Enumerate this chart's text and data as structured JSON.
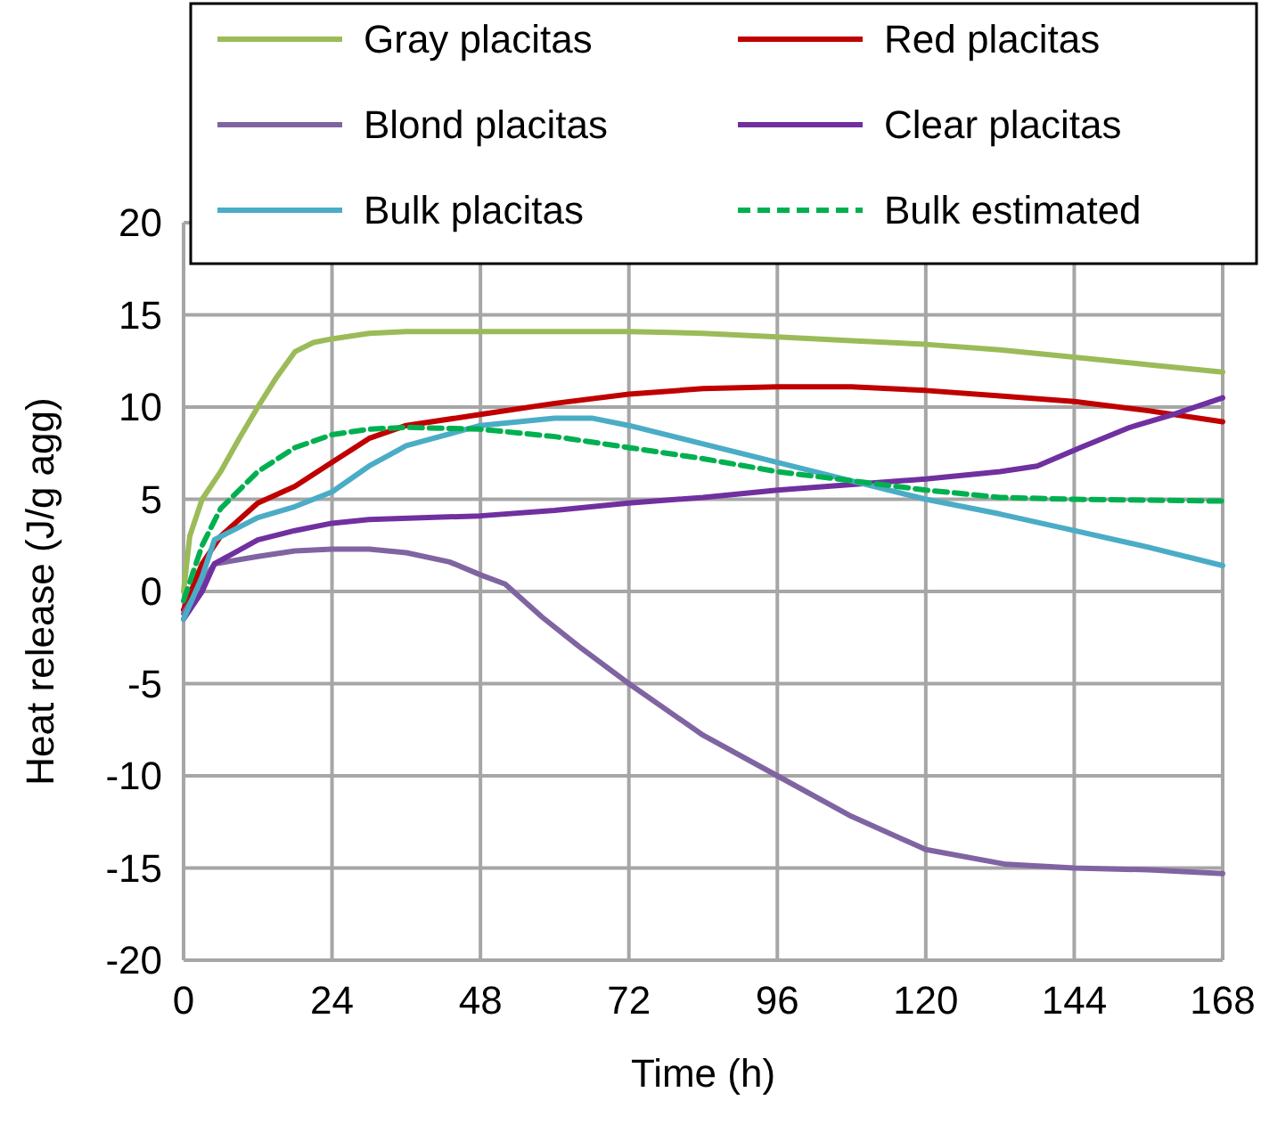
{
  "chart_data": {
    "type": "line",
    "xlabel": "Time (h)",
    "ylabel": "Heat release (J/g agg)",
    "xlim": [
      0,
      168
    ],
    "xticks": [
      0,
      24,
      48,
      72,
      96,
      120,
      144,
      168
    ],
    "ylim": [
      -20,
      20
    ],
    "yticks": [
      -20,
      -15,
      -10,
      -5,
      0,
      5,
      10,
      15,
      20
    ],
    "grid": true,
    "legend": "top",
    "series": [
      {
        "name": "Gray placitas",
        "color": "#9bbb59",
        "x": [
          0,
          1,
          3,
          6,
          9,
          12,
          15,
          18,
          21,
          24,
          30,
          36,
          48,
          60,
          72,
          84,
          96,
          108,
          120,
          132,
          144,
          156,
          168
        ],
        "values": [
          0,
          3,
          5,
          6.5,
          8.3,
          10,
          11.6,
          13,
          13.5,
          13.7,
          14,
          14.1,
          14.1,
          14.1,
          14.1,
          14,
          13.8,
          13.6,
          13.4,
          13.1,
          12.7,
          12.3,
          11.9
        ]
      },
      {
        "name": "Red placitas",
        "color": "#c00000",
        "x": [
          0,
          3,
          6,
          12,
          18,
          24,
          30,
          36,
          48,
          60,
          72,
          84,
          96,
          108,
          120,
          132,
          144,
          156,
          168
        ],
        "values": [
          -1,
          1.5,
          3,
          4.8,
          5.7,
          7,
          8.3,
          9,
          9.6,
          10.2,
          10.7,
          11,
          11.1,
          11.1,
          10.9,
          10.6,
          10.3,
          9.8,
          9.2
        ]
      },
      {
        "name": "Blond placitas",
        "color": "#8064a2",
        "x": [
          0,
          3,
          5,
          12,
          18,
          24,
          30,
          36,
          43,
          48,
          52,
          58,
          64,
          72,
          84,
          96,
          108,
          120,
          133,
          144,
          156,
          168
        ],
        "values": [
          -1.2,
          0.5,
          1.5,
          1.9,
          2.2,
          2.3,
          2.3,
          2.1,
          1.6,
          0.9,
          0.4,
          -1.4,
          -3,
          -5,
          -7.8,
          -10,
          -12.2,
          -14,
          -14.8,
          -15,
          -15.1,
          -15.3
        ]
      },
      {
        "name": "Clear placitas",
        "color": "#7030a0",
        "x": [
          0,
          3,
          5,
          12,
          18,
          24,
          30,
          48,
          60,
          72,
          84,
          96,
          108,
          120,
          132,
          138,
          145,
          153,
          160,
          168
        ],
        "values": [
          -1.5,
          0,
          1.5,
          2.8,
          3.3,
          3.7,
          3.9,
          4.1,
          4.4,
          4.8,
          5.1,
          5.5,
          5.8,
          6.1,
          6.5,
          6.8,
          7.8,
          8.9,
          9.6,
          10.5
        ]
      },
      {
        "name": "Bulk placitas",
        "color": "#4bacc6",
        "x": [
          0,
          3,
          5,
          12,
          18,
          24,
          30,
          36,
          48,
          60,
          66,
          72,
          84,
          96,
          108,
          120,
          132,
          144,
          156,
          168
        ],
        "values": [
          -1.5,
          0.8,
          2.8,
          4,
          4.6,
          5.4,
          6.8,
          7.9,
          9,
          9.4,
          9.4,
          9,
          8,
          7,
          6,
          5,
          4.2,
          3.3,
          2.4,
          1.4
        ]
      },
      {
        "name": "Bulk estimated",
        "color": "#00b050",
        "line_style": "dashed",
        "x": [
          0,
          3,
          6,
          12,
          18,
          24,
          30,
          36,
          48,
          60,
          72,
          84,
          96,
          108,
          120,
          132,
          144,
          168
        ],
        "values": [
          -0.5,
          2.5,
          4.5,
          6.5,
          7.8,
          8.5,
          8.8,
          8.9,
          8.8,
          8.4,
          7.8,
          7.2,
          6.5,
          6,
          5.5,
          5.1,
          5,
          4.9
        ]
      }
    ]
  }
}
